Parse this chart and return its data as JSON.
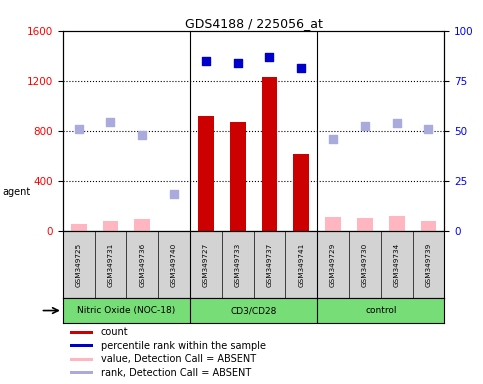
{
  "title": "GDS4188 / 225056_at",
  "samples": [
    "GSM349725",
    "GSM349731",
    "GSM349736",
    "GSM349740",
    "GSM349727",
    "GSM349733",
    "GSM349737",
    "GSM349741",
    "GSM349729",
    "GSM349730",
    "GSM349734",
    "GSM349739"
  ],
  "groups": [
    {
      "name": "Nitric Oxide (NOC-18)",
      "start": 0,
      "end": 4
    },
    {
      "name": "CD3/CD28",
      "start": 4,
      "end": 8
    },
    {
      "name": "control",
      "start": 8,
      "end": 12
    }
  ],
  "count_present": [
    null,
    null,
    null,
    null,
    920,
    870,
    1230,
    620,
    null,
    null,
    null,
    null
  ],
  "count_absent": [
    60,
    80,
    95,
    null,
    null,
    null,
    null,
    null,
    115,
    110,
    125,
    80
  ],
  "percentile_present": [
    null,
    null,
    null,
    null,
    1360,
    1340,
    1390,
    1300,
    null,
    null,
    null,
    null
  ],
  "percentile_absent": [
    820,
    870,
    770,
    295,
    null,
    null,
    null,
    null,
    740,
    840,
    865,
    820
  ],
  "ylim_left": [
    0,
    1600
  ],
  "ylim_right": [
    0,
    100
  ],
  "yticks_left": [
    0,
    400,
    800,
    1200,
    1600
  ],
  "yticks_right": [
    0,
    25,
    50,
    75,
    100
  ],
  "bar_color_present": "#CC0000",
  "bar_color_absent": "#FFB6C1",
  "dot_color_present": "#0000CC",
  "dot_color_absent": "#AAAADD",
  "group_color": "#77DD77",
  "sample_box_color": "#D3D3D3",
  "plot_bg": "#FFFFFF",
  "fig_bg": "#FFFFFF",
  "grid_color": "#000000",
  "legend_items": [
    {
      "color": "#CC0000",
      "label": "count"
    },
    {
      "color": "#0000CC",
      "label": "percentile rank within the sample"
    },
    {
      "color": "#FFB6C1",
      "label": "value, Detection Call = ABSENT"
    },
    {
      "color": "#AAAADD",
      "label": "rank, Detection Call = ABSENT"
    }
  ]
}
